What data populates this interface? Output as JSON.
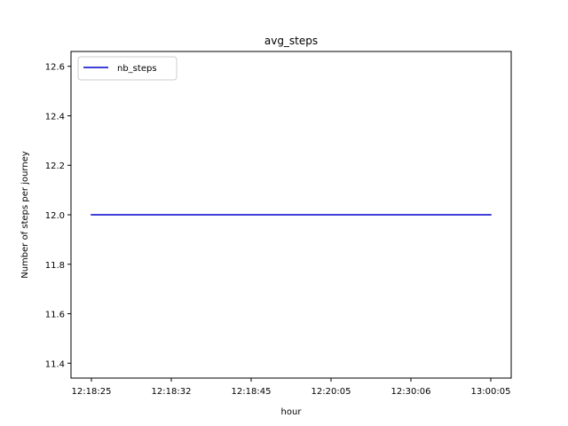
{
  "chart_data": {
    "type": "line",
    "title": "avg_steps",
    "xlabel": "hour",
    "ylabel": "Number of steps per journey",
    "categories": [
      "12:18:25",
      "12:18:32",
      "12:18:45",
      "12:20:05",
      "12:30:06",
      "13:00:05"
    ],
    "series": [
      {
        "name": "nb_steps",
        "color": "#0000cc",
        "values": [
          12.0,
          12.0,
          12.0,
          12.0,
          12.0,
          12.0
        ]
      }
    ],
    "ylim": [
      11.34,
      12.66
    ],
    "yticks": [
      11.4,
      11.6,
      11.8,
      12.0,
      12.2,
      12.4,
      12.6
    ],
    "ytick_labels": [
      "11.4",
      "11.6",
      "11.8",
      "12.0",
      "12.2",
      "12.4",
      "12.6"
    ],
    "grid": false,
    "legend": "upper-left"
  }
}
